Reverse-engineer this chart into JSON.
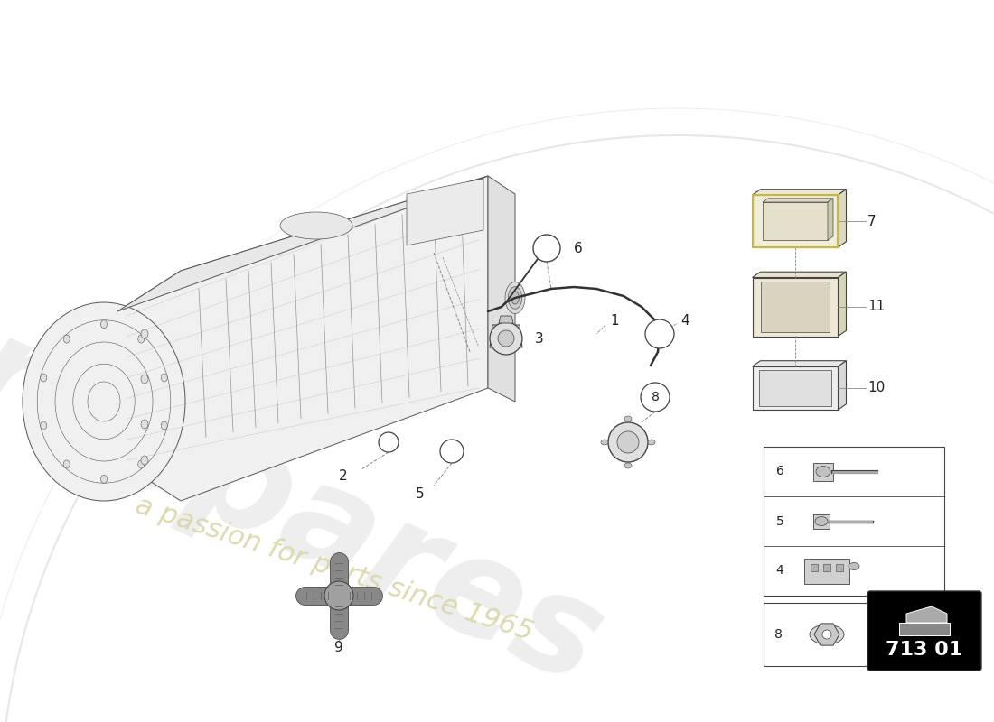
{
  "background_color": "#ffffff",
  "watermark_text1": "eurospares",
  "watermark_text2": "a passion for parts since 1965",
  "diagram_code": "713 01",
  "label_color": "#222222",
  "line_color": "#444444",
  "light_line": "#888888",
  "watermark_color1": "#d0d0d0",
  "watermark_color2": "#d8d4a0",
  "arc_color": "#bbbbbb",
  "ref_box_bg": "#000000",
  "ref_text_color": "#ffffff",
  "gearbox_fill": "#f2f2f2",
  "gearbox_stroke": "#555555"
}
